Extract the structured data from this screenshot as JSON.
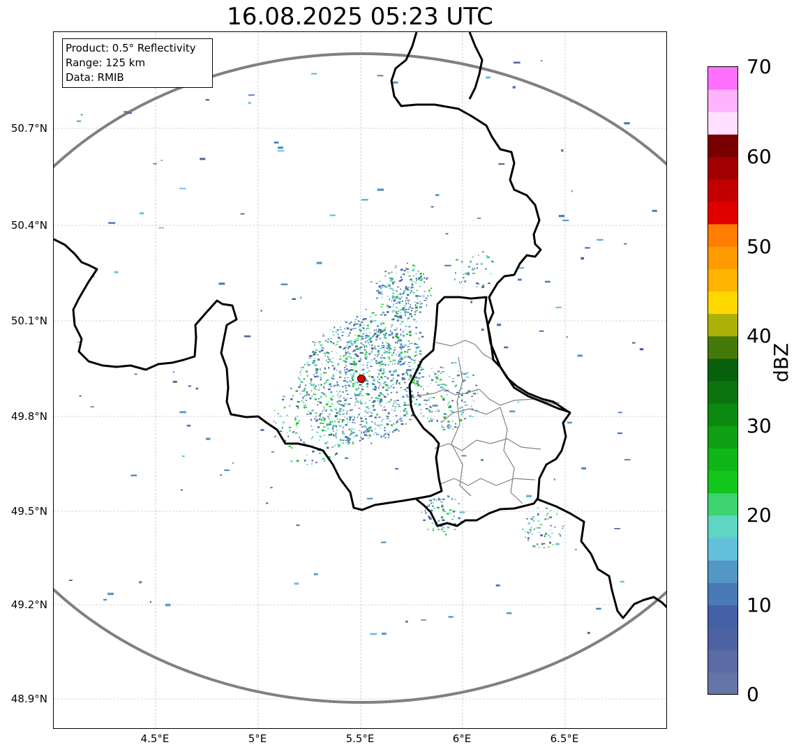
{
  "title": "16.08.2025 05:23 UTC",
  "info": {
    "product": "Product: 0.5° Reflectivity",
    "range": "Range: 125 km",
    "data": "Data: RMIB"
  },
  "axes": {
    "lat_ticks": [
      "50.7°N",
      "50.4°N",
      "50.1°N",
      "49.8°N",
      "49.5°N",
      "49.2°N",
      "48.9°N"
    ],
    "lon_ticks": [
      "4.5°E",
      "5°E",
      "5.5°E",
      "6°E",
      "6.5°E"
    ]
  },
  "radar": {
    "site_lon": 5.5,
    "site_lat": 49.91,
    "range_km": 125,
    "site_color": "#dd0000",
    "range_ring_color": "#808080"
  },
  "colorbar": {
    "unit": "dBZ",
    "min": 0,
    "max": 70,
    "tick_labels": [
      "70",
      "60",
      "50",
      "40",
      "30",
      "20",
      "10",
      "0"
    ],
    "colors": [
      "#6675a8",
      "#5a6ba6",
      "#4d62a3",
      "#4460a6",
      "#4a7ab5",
      "#5397c6",
      "#62c0dc",
      "#5fd6c3",
      "#3dd470",
      "#12c61c",
      "#10b617",
      "#0e9f13",
      "#0c8911",
      "#0a730e",
      "#09600c",
      "#457a0a",
      "#adb007",
      "#ffd800",
      "#ffb400",
      "#ff9a00",
      "#ff7d00",
      "#e00000",
      "#c20000",
      "#a00000",
      "#7a0000",
      "#ffe0ff",
      "#ffb3ff",
      "#ff70ff",
      "#ee33ee",
      "#ee33ee"
    ]
  },
  "map_colors": {
    "border": "#000000",
    "region_border": "#808080",
    "grid": "#b0b0b0"
  }
}
